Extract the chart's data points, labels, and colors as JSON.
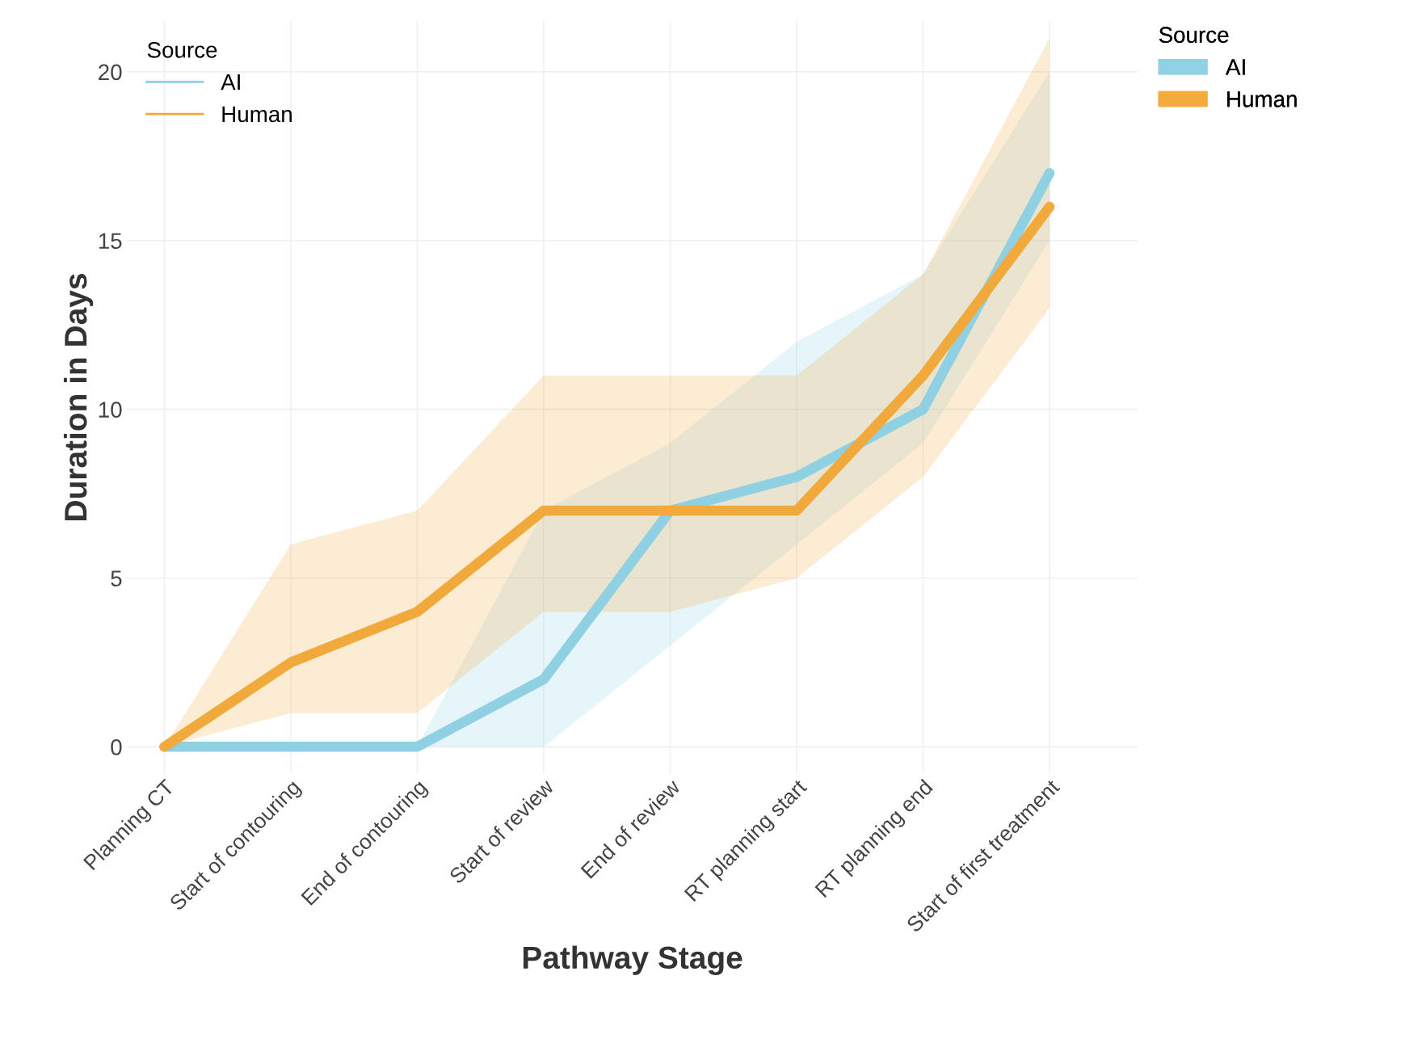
{
  "chart_data": {
    "type": "line",
    "xlabel": "Pathway Stage",
    "ylabel": "Duration in Days",
    "legend_title": "Source",
    "categories": [
      "Planning CT",
      "Start of contouring",
      "End of contouring",
      "Start of review",
      "End of review",
      "RT planning start",
      "RT planning end",
      "Start of first treatment"
    ],
    "series": [
      {
        "name": "AI",
        "color": "#8fd0e3",
        "values": [
          0,
          0,
          0,
          2,
          7,
          8,
          10,
          17
        ],
        "lower": [
          0,
          0,
          0,
          0,
          3,
          6,
          9,
          15
        ],
        "upper": [
          0,
          0,
          0,
          7,
          9,
          12,
          14,
          20
        ]
      },
      {
        "name": "Human",
        "color": "#f2a93b",
        "values": [
          0,
          2.5,
          4,
          7,
          7,
          7,
          11,
          16
        ],
        "lower": [
          0,
          1,
          1,
          4,
          4,
          5,
          8,
          13
        ],
        "upper": [
          0,
          6,
          7,
          11,
          11,
          11,
          14,
          21
        ]
      }
    ],
    "ylim": [
      -0.8,
      21.5
    ],
    "yticks": [
      0,
      5,
      10,
      15,
      20
    ],
    "grid": true,
    "legend": [
      "top left",
      "upper right outside"
    ],
    "line_style": "solid"
  }
}
